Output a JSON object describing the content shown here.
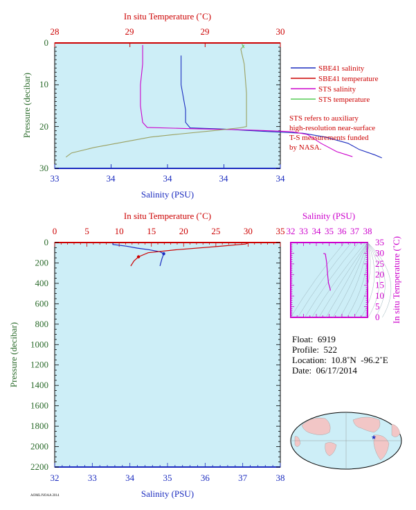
{
  "top_chart": {
    "top_axis_title": "In situ Temperature (˚C)",
    "top_ticks": [
      "28",
      "29",
      "29",
      "30"
    ],
    "bottom_axis_title": "Salinity (PSU)",
    "bottom_ticks": [
      "33",
      "34",
      "34",
      "34",
      "34"
    ],
    "left_axis_title": "Pressure (decibar)",
    "left_ticks": [
      "0",
      "10",
      "20",
      "30"
    ],
    "legend": [
      {
        "label": "SBE41 salinity",
        "color": "#1a2bbf"
      },
      {
        "label": "SBE41 temperature",
        "color": "#cc0000"
      },
      {
        "label": "STS salinity",
        "color": "#cc00cc"
      },
      {
        "label": "STS temperature",
        "color": "#55cc55"
      }
    ],
    "note_lines": [
      "STS refers to auxiliary",
      "high-resolution near-surface",
      "T-S measurements funded",
      "by NASA."
    ]
  },
  "bottom_chart": {
    "top_axis_title": "In situ Temperature (˚C)",
    "top_ticks": [
      "0",
      "5",
      "10",
      "15",
      "20",
      "25",
      "30",
      "35"
    ],
    "bottom_axis_title": "Salinity (PSU)",
    "bottom_ticks": [
      "32",
      "33",
      "34",
      "35",
      "36",
      "37",
      "38"
    ],
    "left_axis_title": "Pressure (decibar)",
    "left_ticks": [
      "0",
      "200",
      "400",
      "600",
      "800",
      "1000",
      "1200",
      "1400",
      "1600",
      "1800",
      "2000",
      "2200"
    ]
  },
  "ts_inset": {
    "top_axis_title": "Salinity (PSU)",
    "top_ticks": [
      "32",
      "33",
      "34",
      "35",
      "36",
      "37",
      "38"
    ],
    "right_axis_title": "In situ Temperature (˚C)",
    "right_ticks": [
      "35",
      "30",
      "25",
      "20",
      "15",
      "10",
      "5",
      "0"
    ]
  },
  "info": {
    "float": "Float:  6919",
    "profile": "Profile:  522",
    "location": "Location:  10.8˚N  -96.2˚E",
    "date": "Date:  06/17/2014"
  },
  "footer_text": "AOML/NOAA 2014",
  "colors": {
    "plot_bg": "#cdeef7",
    "axis_red": "#cc0000",
    "axis_blue": "#1a2bbf",
    "magenta": "#cc00cc"
  },
  "chart_data": [
    {
      "type": "line",
      "chart": "top",
      "ylim": [
        30,
        0
      ],
      "temperature_xlim": [
        28,
        30
      ],
      "salinity_xlim": [
        33,
        34
      ],
      "series": [
        {
          "name": "SBE41 salinity",
          "x_axis": "salinity",
          "points": [
            [
              33.56,
              3
            ],
            [
              33.56,
              10
            ],
            [
              33.58,
              16
            ],
            [
              33.58,
              19
            ],
            [
              33.6,
              20.3
            ],
            [
              33.75,
              20.6
            ],
            [
              33.95,
              21.2
            ],
            [
              34.1,
              21.6
            ],
            [
              34.2,
              22.5
            ],
            [
              34.3,
              24
            ],
            [
              34.35,
              25.5
            ],
            [
              34.42,
              26.8
            ],
            [
              34.45,
              27.5
            ]
          ]
        },
        {
          "name": "SBE41 temperature",
          "x_axis": "temperature",
          "points": [
            [
              28.0,
              0
            ],
            [
              30.0,
              0
            ]
          ]
        },
        {
          "name": "STS salinity",
          "x_axis": "salinity",
          "points": [
            [
              33.39,
              0.5
            ],
            [
              33.39,
              5
            ],
            [
              33.38,
              10
            ],
            [
              33.38,
              15
            ],
            [
              33.39,
              19
            ],
            [
              33.41,
              20.2
            ],
            [
              33.6,
              20.5
            ],
            [
              33.85,
              20.8
            ],
            [
              34.05,
              21.2
            ],
            [
              34.12,
              21.9
            ],
            [
              34.18,
              24
            ],
            [
              34.25,
              26
            ],
            [
              34.32,
              27.2
            ]
          ]
        },
        {
          "name": "STS temperature",
          "x_axis": "temperature",
          "points": [
            [
              29.68,
              0.5
            ],
            [
              29.65,
              1.5
            ],
            [
              29.68,
              5
            ],
            [
              29.7,
              12
            ],
            [
              29.7,
              20
            ],
            [
              29.64,
              20.3
            ],
            [
              29.4,
              21
            ],
            [
              29.1,
              21.8
            ],
            [
              28.85,
              22.5
            ],
            [
              28.55,
              24
            ],
            [
              28.35,
              25
            ],
            [
              28.15,
              26.3
            ],
            [
              28.1,
              27.3
            ]
          ]
        }
      ]
    },
    {
      "type": "line",
      "chart": "bottom",
      "ylim": [
        2200,
        0
      ],
      "temperature_xlim": [
        0,
        35
      ],
      "salinity_xlim": [
        32,
        38
      ],
      "series": [
        {
          "name": "salinity",
          "x_axis": "salinity",
          "color": "#1a2bbf",
          "points": [
            [
              33.55,
              5
            ],
            [
              33.55,
              20
            ],
            [
              33.9,
              35
            ],
            [
              34.2,
              55
            ],
            [
              34.5,
              70
            ],
            [
              34.8,
              90
            ],
            [
              34.9,
              110
            ],
            [
              34.85,
              160
            ],
            [
              34.8,
              230
            ]
          ]
        },
        {
          "name": "temperature",
          "x_axis": "temperature",
          "color": "#cc0000",
          "points": [
            [
              30.0,
              5
            ],
            [
              29.6,
              15
            ],
            [
              25,
              40
            ],
            [
              19,
              70
            ],
            [
              14.5,
              100
            ],
            [
              13,
              140
            ],
            [
              12.3,
              180
            ],
            [
              11.8,
              230
            ]
          ]
        }
      ]
    },
    {
      "type": "line",
      "chart": "ts_inset",
      "xlim": [
        32,
        38
      ],
      "ylim": [
        0,
        35
      ],
      "series": [
        {
          "name": "T-S profile",
          "color": "#cc00cc",
          "points": [
            [
              34.55,
              29.9
            ],
            [
              34.7,
              29.7
            ],
            [
              34.8,
              26
            ],
            [
              34.88,
              20
            ],
            [
              34.95,
              16
            ],
            [
              35.05,
              14
            ],
            [
              35.1,
              12.5
            ]
          ]
        }
      ]
    }
  ]
}
